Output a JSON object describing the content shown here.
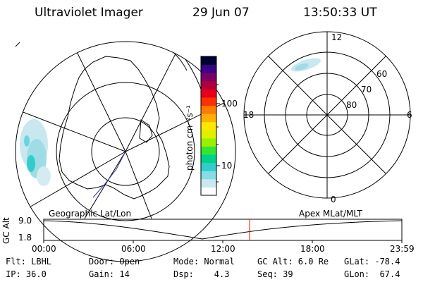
{
  "header": {
    "title": "Ultraviolet Imager",
    "date": "29 Jun 07",
    "time": "13:50:33 UT"
  },
  "colorbar": {
    "unit_label": "photon cm⁻²s⁻¹",
    "ticks": [
      "100",
      "10"
    ],
    "colors": [
      "#ffffff",
      "#c9e9ef",
      "#86dde6",
      "#33cccc",
      "#00d08a",
      "#33e633",
      "#99f000",
      "#ddf000",
      "#ffe800",
      "#ffb000",
      "#ff7a00",
      "#ff3000",
      "#e8001a",
      "#b0003c",
      "#7a0066",
      "#3a0088",
      "#000033"
    ]
  },
  "left_map": {
    "label": "Geographic Lat/Lon"
  },
  "right_map": {
    "label": "Apex MLat/MLT",
    "labels": {
      "top": "12",
      "bottom": "0",
      "left": "18",
      "right": "6",
      "lat60": "60",
      "lat70": "70",
      "lat80": "80"
    }
  },
  "timeline": {
    "axis_label": "GC Alt",
    "y_top": "9.0",
    "y_bottom": "1.8",
    "ticks": [
      "00:00",
      "06:00",
      "12:00",
      "18:00",
      "23:59"
    ],
    "marker_color": "#ff0000"
  },
  "status": {
    "row1": {
      "flt": "Flt: LBHL",
      "door": "Door: Open",
      "mode": "Mode: Normal",
      "gcalt": "GC Alt: 6.0 Re",
      "glat": "GLat: -78.4"
    },
    "row2": {
      "ip": "IP: 36.0",
      "gain": "Gain: 14",
      "dsp": "Dsp:    4.3",
      "seq": "Seq: 39",
      "glon": "GLon:  67.4"
    }
  }
}
